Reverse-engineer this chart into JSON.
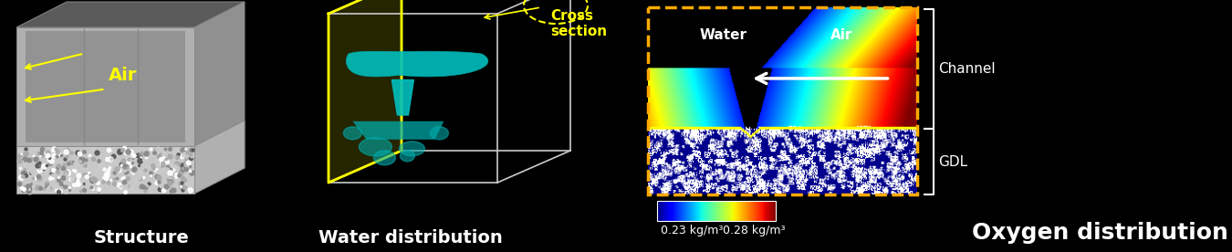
{
  "fig_width": 13.5,
  "fig_height": 2.76,
  "dpi": 100,
  "bg_color": "#000000",
  "structure_label": "Structure",
  "water_label": "Water distribution",
  "oxygen_label": "Oxygen distribution",
  "colorbar_min": "0.23 kg/m³",
  "colorbar_max": "0.28 kg/m³",
  "air_text": "Air",
  "water_text": "Water",
  "air_channel_text": "Air",
  "channel_text": "Channel",
  "gdl_text": "GDL",
  "cross_section_text": "Cross\nsection"
}
